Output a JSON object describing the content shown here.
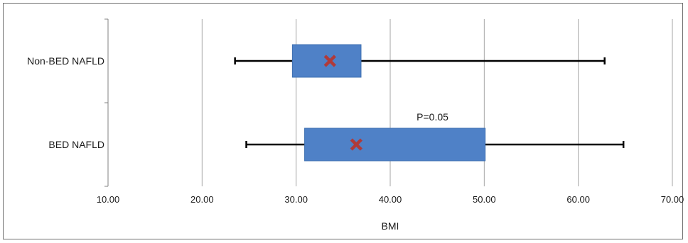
{
  "chart_data": {
    "type": "boxplot",
    "orientation": "horizontal",
    "xlabel": "BMI",
    "ylabel": "",
    "xlim": [
      10,
      70
    ],
    "x_ticks": [
      "10.00",
      "20.00",
      "30.00",
      "40.00",
      "50.00",
      "60.00",
      "70.00"
    ],
    "grid": "vertical",
    "categories": [
      "Non-BED NAFLD",
      "BED NAFLD"
    ],
    "series": [
      {
        "category": "Non-BED NAFLD",
        "whisker_low": 23.5,
        "q1": 29.6,
        "q3": 36.9,
        "whisker_high": 62.8,
        "mean": 33.6
      },
      {
        "category": "BED NAFLD",
        "whisker_low": 24.7,
        "q1": 30.9,
        "q3": 50.1,
        "whisker_high": 64.8,
        "mean": 36.4
      }
    ],
    "annotation": {
      "text": "P=0.05",
      "x": 44.5,
      "category": "BED NAFLD"
    },
    "colors": {
      "box": "#4f81c7",
      "whisker": "#000000",
      "mean_marker": "#b03a3a",
      "grid": "#a6a6a6",
      "axis": "#808080"
    }
  }
}
